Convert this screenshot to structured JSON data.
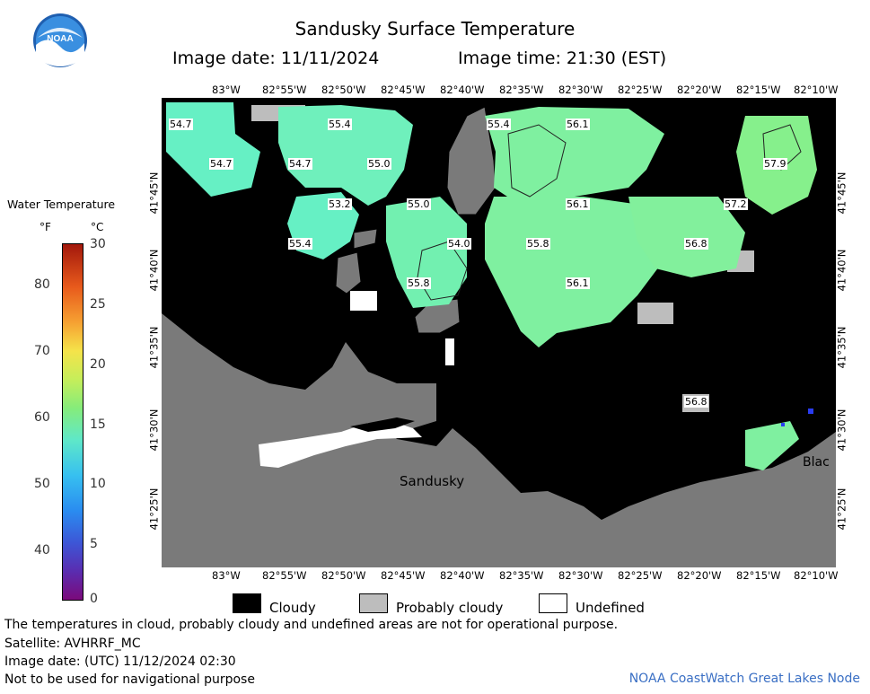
{
  "header": {
    "title": "Sandusky Surface Temperature",
    "image_date": "Image date: 11/11/2024",
    "image_time": "Image time: 21:30 (EST)",
    "logo_text": "NOAA"
  },
  "axes": {
    "lon_ticks": [
      "83°W",
      "82°55'W",
      "82°50'W",
      "82°45'W",
      "82°40'W",
      "82°35'W",
      "82°30'W",
      "82°25'W",
      "82°20'W",
      "82°15'W",
      "82°10'W"
    ],
    "lat_ticks": [
      "41°45'N",
      "41°40'N",
      "41°35'N",
      "41°30'N",
      "41°25'N"
    ]
  },
  "legend": {
    "title": "Water Temperature",
    "unit_f": "°F",
    "unit_c": "°C",
    "f_ticks": [
      "80",
      "70",
      "60",
      "50",
      "40"
    ],
    "c_ticks": [
      "30",
      "25",
      "20",
      "15",
      "10",
      "5",
      "0"
    ]
  },
  "key": {
    "cloudy": "Cloudy",
    "probably_cloudy": "Probably cloudy",
    "undefined": "Undefined",
    "colors": {
      "cloudy": "#000000",
      "probably_cloudy": "#bdbdbd",
      "undefined": "#ffffff",
      "land": "#7a7a7a",
      "water_cool": "#66f0b4",
      "water_warm": "#7ff0a0"
    }
  },
  "map": {
    "place_labels": {
      "city": "Sandusky",
      "edge": "Blac"
    },
    "temperatures": [
      "54.7",
      "55.4",
      "56.1",
      "54.7",
      "54.7",
      "55.0",
      "57.9",
      "53.2",
      "55.0",
      "56.1",
      "57.2",
      "55.4",
      "54.0",
      "55.8",
      "56.8",
      "55.8",
      "56.1",
      "56.8"
    ]
  },
  "footer": {
    "disclaimer": "The temperatures in cloud, probably cloudy and undefined areas are not for operational purpose.",
    "satellite": "Satellite: AVHRRF_MC",
    "utc_date": "Image date: (UTC) 11/12/2024  02:30",
    "nav_warning": "Not to be used for navigational purpose",
    "credit": "NOAA CoastWatch Great Lakes Node"
  }
}
